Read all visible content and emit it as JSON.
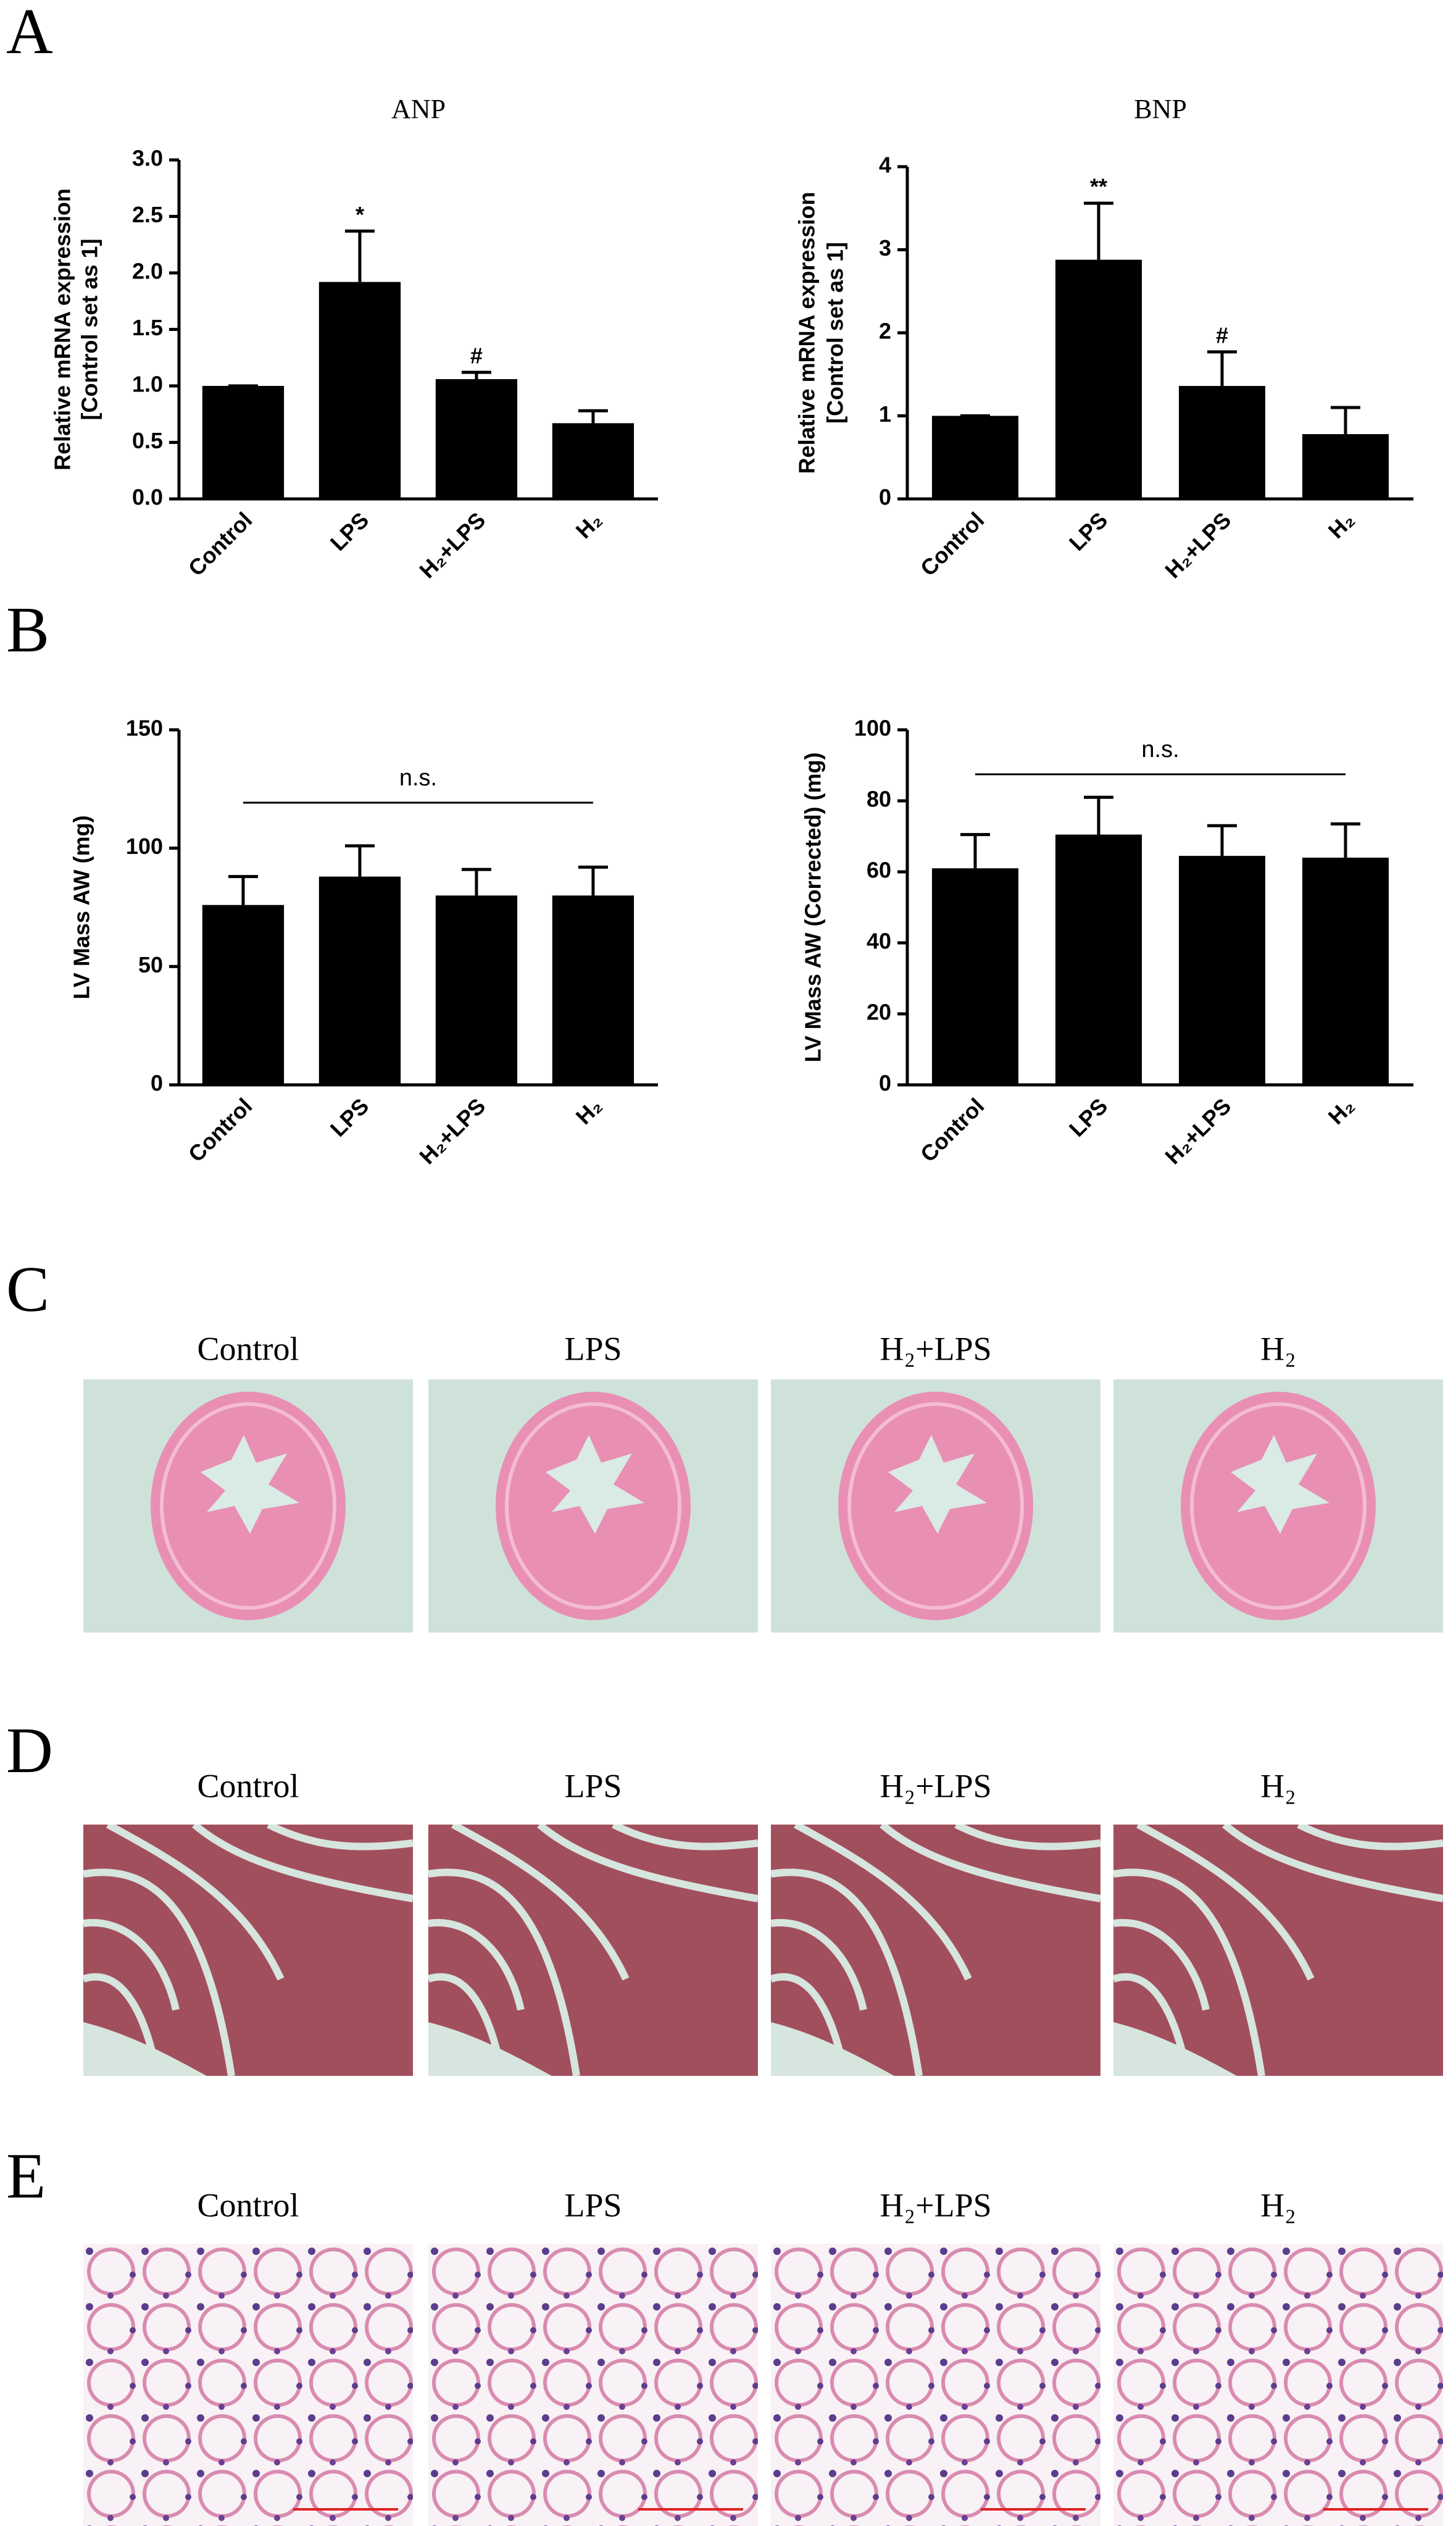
{
  "panel_letters": [
    "A",
    "B",
    "C",
    "D",
    "E"
  ],
  "chart_data": [
    {
      "type": "bar",
      "title": "ANP",
      "ylabel": [
        "Relative mRNA expression",
        "[Control set as 1]"
      ],
      "categories": [
        "Control",
        "LPS",
        "H₂+LPS",
        "H₂"
      ],
      "values": [
        1.0,
        1.92,
        1.06,
        0.67
      ],
      "errors": [
        0,
        0.45,
        0.06,
        0.11
      ],
      "significance": [
        null,
        "*",
        "#",
        null
      ],
      "color": "#000000",
      "ylim": [
        0,
        3
      ],
      "yticks": [
        {
          "value": 0,
          "label": "0.0"
        },
        0.5,
        {
          "value": 1,
          "label": "1.0"
        },
        1.5,
        {
          "value": 2,
          "label": "2.0"
        },
        2.5,
        {
          "value": 3,
          "label": "3.0"
        }
      ]
    },
    {
      "type": "bar",
      "title": "BNP",
      "ylabel": [
        "Relative mRNA expression",
        "[Control set as 1]"
      ],
      "categories": [
        "Control",
        "LPS",
        "H₂+LPS",
        "H₂"
      ],
      "values": [
        1.0,
        2.88,
        1.36,
        0.78
      ],
      "errors": [
        0,
        0.68,
        0.41,
        0.32
      ],
      "significance": [
        null,
        "**",
        "#",
        null
      ],
      "color": "#000000",
      "ylim": [
        0,
        4
      ],
      "yticks": [
        0,
        1,
        2,
        3,
        4
      ]
    },
    {
      "type": "bar",
      "ylabel": [
        "LV Mass AW (mg)"
      ],
      "categories": [
        "Control",
        "LPS",
        "H₂+LPS",
        "H₂"
      ],
      "values": [
        76,
        88,
        80,
        80
      ],
      "errors": [
        12,
        13,
        11,
        12
      ],
      "bracket_label": "n.s.",
      "color": "#000000",
      "ylim": [
        0,
        150
      ],
      "yticks": [
        0,
        50,
        100,
        150
      ]
    },
    {
      "type": "bar",
      "ylabel": [
        "LV Mass AW (Corrected) (mg)"
      ],
      "categories": [
        "Control",
        "LPS",
        "H₂+LPS",
        "H₂"
      ],
      "values": [
        61,
        70.5,
        64.5,
        64
      ],
      "errors": [
        9.5,
        10.5,
        8.5,
        9.5
      ],
      "bracket_label": "n.s.",
      "color": "#000000",
      "ylim": [
        0,
        100
      ],
      "yticks": [
        0,
        20,
        40,
        60,
        80,
        100
      ]
    }
  ],
  "image_rows": [
    {
      "labels": [
        "Control",
        "LPS",
        "H₂+LPS",
        "H₂"
      ]
    },
    {
      "labels": [
        "Control",
        "LPS",
        "H₂+LPS",
        "H₂"
      ]
    },
    {
      "labels": [
        "Control",
        "LPS",
        "H₂+LPS",
        "H₂"
      ]
    }
  ]
}
